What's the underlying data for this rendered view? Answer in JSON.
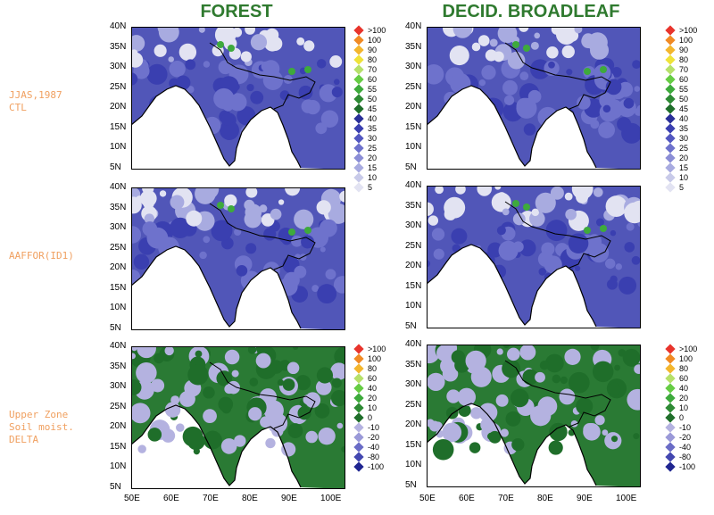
{
  "columns": [
    {
      "title": "FOREST"
    },
    {
      "title": "DECID. BROADLEAF"
    }
  ],
  "rows": [
    {
      "label": "JJAS,1987\nCTL"
    },
    {
      "label": "AAFFOR(ID1)"
    },
    {
      "label": "Upper Zone\nSoil moist.\nDELTA"
    }
  ],
  "lat_labels": [
    "40N",
    "35N",
    "30N",
    "25N",
    "20N",
    "15N",
    "10N",
    "5N"
  ],
  "lon_labels": [
    "50E",
    "60E",
    "70E",
    "80E",
    "90E",
    "100E"
  ],
  "legend_abs": {
    "labels": [
      ">100",
      "100",
      "90",
      "80",
      "70",
      "60",
      "55",
      "50",
      "45",
      "40",
      "35",
      "30",
      "25",
      "20",
      "15",
      "10",
      "5"
    ],
    "colors": [
      "#e8342c",
      "#f08a24",
      "#f3b62e",
      "#efe23a",
      "#b6e06a",
      "#66cc44",
      "#3eaa3c",
      "#2e8a34",
      "#1f6e2a",
      "#2a2f98",
      "#3a3fb0",
      "#5257c0",
      "#6e72cc",
      "#8b8ed6",
      "#a8abe0",
      "#c8cae9",
      "#e2e3f2"
    ]
  },
  "legend_delta": {
    "labels": [
      ">100",
      "100",
      "80",
      "60",
      "40",
      "20",
      "10",
      "0",
      "-10",
      "-20",
      "-40",
      "-80",
      "-100"
    ],
    "colors": [
      "#e8342c",
      "#f08a24",
      "#f3b62e",
      "#b6e06a",
      "#66cc44",
      "#3eaa3c",
      "#2e8a34",
      "#1f6e2a",
      "#b4b2e0",
      "#9a99d8",
      "#6a6cc6",
      "#4347b0",
      "#1f2590"
    ]
  }
}
